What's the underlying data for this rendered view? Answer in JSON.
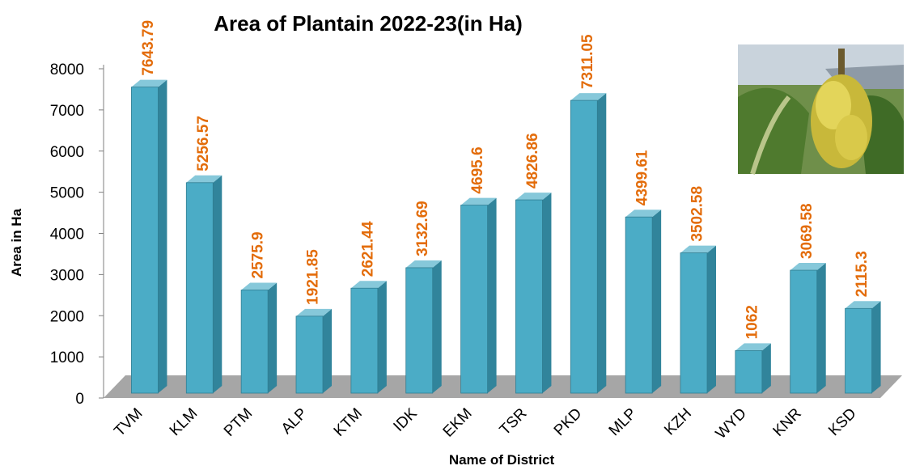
{
  "chart_data": {
    "type": "bar3d",
    "title": "Area of Plantain 2022-23(in Ha)",
    "x_label": "Name of District",
    "y_label": "Area in Ha",
    "categories": [
      "TVM",
      "KLM",
      "PTM",
      "ALP",
      "KTM",
      "IDK",
      "EKM",
      "TSR",
      "PKD",
      "MLP",
      "KZH",
      "WYD",
      "KNR",
      "KSD"
    ],
    "values": [
      7643.79,
      5256.57,
      2575.9,
      1921.85,
      2621.44,
      3132.69,
      4695.6,
      4826.86,
      7311.05,
      4399.61,
      3502.58,
      1062,
      3069.58,
      2115.3
    ],
    "color": "#4bacc6",
    "value_label_color": "#e36c0a",
    "ylim": [
      0,
      8000
    ],
    "yticks": [
      0,
      1000,
      2000,
      3000,
      4000,
      5000,
      6000,
      7000,
      8000
    ]
  }
}
